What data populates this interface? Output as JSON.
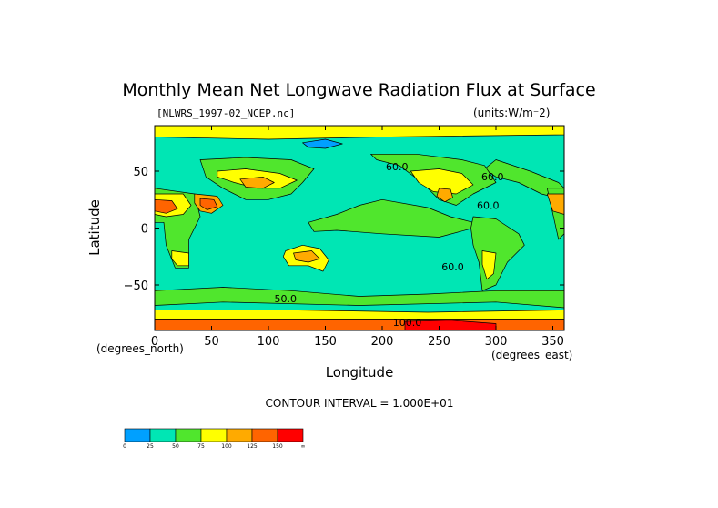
{
  "chart_data": {
    "type": "heatmap",
    "title": "Monthly Mean Net Longwave Radiation Flux at Surface",
    "dataset_label": "[NLWRS_1997-02_NCEP.nc]",
    "units_label": "(units:W/m^2)",
    "xlabel": "Longitude",
    "ylabel": "Latitude",
    "x_units_note": "(degrees_east)",
    "y_units_note": "(degrees_north)",
    "contour_interval_text": "CONTOUR INTERVAL = 1.000E+01",
    "xlim": [
      0,
      360
    ],
    "ylim": [
      -90,
      90
    ],
    "x_ticks": [
      0,
      50,
      100,
      150,
      200,
      250,
      300,
      350
    ],
    "y_ticks": [
      -50,
      0,
      50
    ],
    "y_tick_labels": [
      "−50",
      "0",
      "50"
    ],
    "colorbar": {
      "bounds": [
        0,
        25,
        50,
        75,
        100,
        125,
        150
      ],
      "labels": [
        "0",
        "25",
        "50",
        "75",
        "100",
        "125",
        "150",
        "∞"
      ],
      "colors": [
        "#00a0ff",
        "#00e6b4",
        "#50e62d",
        "#ffff00",
        "#ffaa00",
        "#ff6400",
        "#ff0000"
      ]
    },
    "background_level_color": "#00e6b4",
    "regions": [
      {
        "name": "pacific-band",
        "level": 2,
        "points": [
          [
            135,
            5
          ],
          [
            160,
            12
          ],
          [
            180,
            20
          ],
          [
            200,
            25
          ],
          [
            240,
            18
          ],
          [
            260,
            10
          ],
          [
            280,
            5
          ],
          [
            280,
            0
          ],
          [
            250,
            -8
          ],
          [
            200,
            -5
          ],
          [
            160,
            -2
          ],
          [
            140,
            -3
          ]
        ]
      },
      {
        "name": "southern-band",
        "level": 2,
        "points": [
          [
            0,
            -55
          ],
          [
            60,
            -52
          ],
          [
            120,
            -55
          ],
          [
            180,
            -60
          ],
          [
            240,
            -58
          ],
          [
            300,
            -55
          ],
          [
            360,
            -55
          ],
          [
            360,
            -70
          ],
          [
            300,
            -65
          ],
          [
            180,
            -68
          ],
          [
            60,
            -65
          ],
          [
            0,
            -68
          ]
        ]
      },
      {
        "name": "north-atlantic-green",
        "level": 2,
        "points": [
          [
            300,
            60
          ],
          [
            330,
            50
          ],
          [
            355,
            40
          ],
          [
            360,
            35
          ],
          [
            360,
            25
          ],
          [
            340,
            30
          ],
          [
            320,
            40
          ],
          [
            300,
            45
          ],
          [
            290,
            52
          ]
        ]
      },
      {
        "name": "africa",
        "level": 2,
        "points": [
          [
            345,
            35
          ],
          [
            360,
            35
          ],
          [
            360,
            -5
          ],
          [
            355,
            -10
          ]
        ]
      },
      {
        "name": "africa-west",
        "level": 2,
        "points": [
          [
            0,
            35
          ],
          [
            35,
            30
          ],
          [
            40,
            10
          ],
          [
            30,
            -10
          ],
          [
            30,
            -35
          ],
          [
            18,
            -35
          ],
          [
            10,
            -15
          ],
          [
            8,
            5
          ],
          [
            0,
            5
          ]
        ]
      },
      {
        "name": "sahara",
        "level": 3,
        "points": [
          [
            0,
            30
          ],
          [
            25,
            30
          ],
          [
            32,
            20
          ],
          [
            25,
            12
          ],
          [
            10,
            10
          ],
          [
            0,
            12
          ]
        ]
      },
      {
        "name": "sahara-east-edge",
        "level": 4,
        "points": [
          [
            345,
            30
          ],
          [
            360,
            30
          ],
          [
            360,
            12
          ],
          [
            350,
            15
          ]
        ]
      },
      {
        "name": "sahara-core",
        "level": 5,
        "points": [
          [
            0,
            25
          ],
          [
            15,
            24
          ],
          [
            20,
            17
          ],
          [
            10,
            13
          ],
          [
            0,
            15
          ]
        ]
      },
      {
        "name": "arabia",
        "level": 4,
        "points": [
          [
            35,
            30
          ],
          [
            55,
            28
          ],
          [
            60,
            20
          ],
          [
            50,
            13
          ],
          [
            40,
            15
          ],
          [
            35,
            22
          ]
        ]
      },
      {
        "name": "arabia-core",
        "level": 5,
        "points": [
          [
            40,
            26
          ],
          [
            52,
            25
          ],
          [
            55,
            19
          ],
          [
            46,
            16
          ],
          [
            40,
            20
          ]
        ]
      },
      {
        "name": "asia",
        "level": 2,
        "points": [
          [
            40,
            60
          ],
          [
            80,
            62
          ],
          [
            120,
            60
          ],
          [
            140,
            52
          ],
          [
            130,
            40
          ],
          [
            120,
            30
          ],
          [
            100,
            25
          ],
          [
            80,
            25
          ],
          [
            60,
            35
          ],
          [
            45,
            45
          ]
        ]
      },
      {
        "name": "central-asia",
        "level": 3,
        "points": [
          [
            55,
            50
          ],
          [
            80,
            52
          ],
          [
            110,
            48
          ],
          [
            125,
            42
          ],
          [
            110,
            35
          ],
          [
            90,
            35
          ],
          [
            70,
            40
          ],
          [
            55,
            45
          ]
        ]
      },
      {
        "name": "tibet-gobi",
        "level": 4,
        "points": [
          [
            75,
            43
          ],
          [
            95,
            45
          ],
          [
            105,
            40
          ],
          [
            95,
            35
          ],
          [
            80,
            36
          ]
        ]
      },
      {
        "name": "north-america",
        "level": 2,
        "points": [
          [
            190,
            65
          ],
          [
            230,
            65
          ],
          [
            270,
            60
          ],
          [
            290,
            55
          ],
          [
            300,
            40
          ],
          [
            280,
            30
          ],
          [
            265,
            20
          ],
          [
            250,
            25
          ],
          [
            235,
            40
          ],
          [
            215,
            55
          ],
          [
            195,
            60
          ]
        ]
      },
      {
        "name": "usa-interior",
        "level": 3,
        "points": [
          [
            225,
            50
          ],
          [
            250,
            52
          ],
          [
            270,
            48
          ],
          [
            280,
            38
          ],
          [
            265,
            30
          ],
          [
            245,
            32
          ],
          [
            232,
            40
          ]
        ]
      },
      {
        "name": "mexico",
        "level": 4,
        "points": [
          [
            250,
            35
          ],
          [
            260,
            34
          ],
          [
            262,
            27
          ],
          [
            255,
            23
          ],
          [
            248,
            28
          ]
        ]
      },
      {
        "name": "south-america",
        "level": 2,
        "points": [
          [
            280,
            10
          ],
          [
            300,
            8
          ],
          [
            320,
            -5
          ],
          [
            325,
            -15
          ],
          [
            310,
            -30
          ],
          [
            300,
            -50
          ],
          [
            288,
            -55
          ],
          [
            285,
            -30
          ],
          [
            280,
            -15
          ],
          [
            278,
            0
          ]
        ]
      },
      {
        "name": "andes-chile",
        "level": 3,
        "points": [
          [
            288,
            -20
          ],
          [
            300,
            -22
          ],
          [
            298,
            -40
          ],
          [
            292,
            -45
          ],
          [
            288,
            -32
          ]
        ]
      },
      {
        "name": "australia",
        "level": 3,
        "points": [
          [
            115,
            -20
          ],
          [
            130,
            -15
          ],
          [
            145,
            -18
          ],
          [
            153,
            -28
          ],
          [
            148,
            -38
          ],
          [
            135,
            -33
          ],
          [
            118,
            -33
          ],
          [
            113,
            -25
          ]
        ]
      },
      {
        "name": "australia-core",
        "level": 4,
        "points": [
          [
            122,
            -22
          ],
          [
            138,
            -20
          ],
          [
            145,
            -27
          ],
          [
            135,
            -30
          ],
          [
            124,
            -28
          ]
        ]
      },
      {
        "name": "southern-africa",
        "level": 3,
        "points": [
          [
            15,
            -20
          ],
          [
            30,
            -22
          ],
          [
            30,
            -33
          ],
          [
            20,
            -33
          ],
          [
            15,
            -27
          ]
        ]
      },
      {
        "name": "arctic",
        "level": 3,
        "points": [
          [
            0,
            90
          ],
          [
            360,
            90
          ],
          [
            360,
            82
          ],
          [
            200,
            80
          ],
          [
            100,
            78
          ],
          [
            0,
            80
          ]
        ]
      },
      {
        "name": "siberia-blue",
        "level": 0,
        "points": [
          [
            130,
            75
          ],
          [
            150,
            78
          ],
          [
            165,
            74
          ],
          [
            150,
            70
          ],
          [
            135,
            71
          ]
        ]
      },
      {
        "name": "antarctic-edge",
        "level": 3,
        "points": [
          [
            0,
            -72
          ],
          [
            120,
            -72
          ],
          [
            240,
            -74
          ],
          [
            360,
            -72
          ],
          [
            360,
            -80
          ],
          [
            0,
            -80
          ]
        ]
      },
      {
        "name": "antarctica",
        "level": 5,
        "points": [
          [
            0,
            -80
          ],
          [
            360,
            -80
          ],
          [
            360,
            -90
          ],
          [
            0,
            -90
          ]
        ]
      },
      {
        "name": "antarctic-peak",
        "level": 6,
        "points": [
          [
            220,
            -82
          ],
          [
            260,
            -81
          ],
          [
            300,
            -84
          ],
          [
            300,
            -90
          ],
          [
            220,
            -90
          ]
        ]
      }
    ],
    "contour_labels": [
      {
        "text": "60.0",
        "lon": 297,
        "lat": 42
      },
      {
        "text": "60.0",
        "lon": 213,
        "lat": 51
      },
      {
        "text": "60.0",
        "lon": 293,
        "lat": 17
      },
      {
        "text": "60.0",
        "lon": 262,
        "lat": -37
      },
      {
        "text": "50.0",
        "lon": 115,
        "lat": -65
      },
      {
        "text": "100.0",
        "lon": 222,
        "lat": -86
      }
    ]
  }
}
